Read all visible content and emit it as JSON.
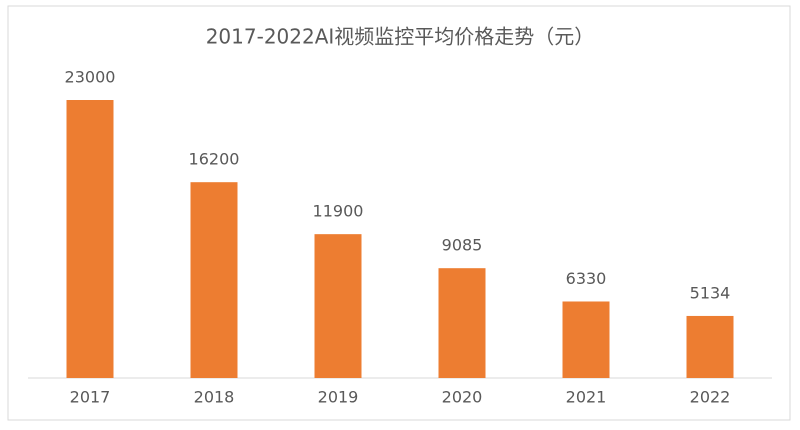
{
  "chart_data": {
    "type": "bar",
    "title": "2017-2022AI视频监控平均价格走势（元）",
    "categories": [
      "2017",
      "2018",
      "2019",
      "2020",
      "2021",
      "2022"
    ],
    "values": [
      23000,
      16200,
      11900,
      9085,
      6330,
      5134
    ],
    "color": "#ed7d31"
  }
}
